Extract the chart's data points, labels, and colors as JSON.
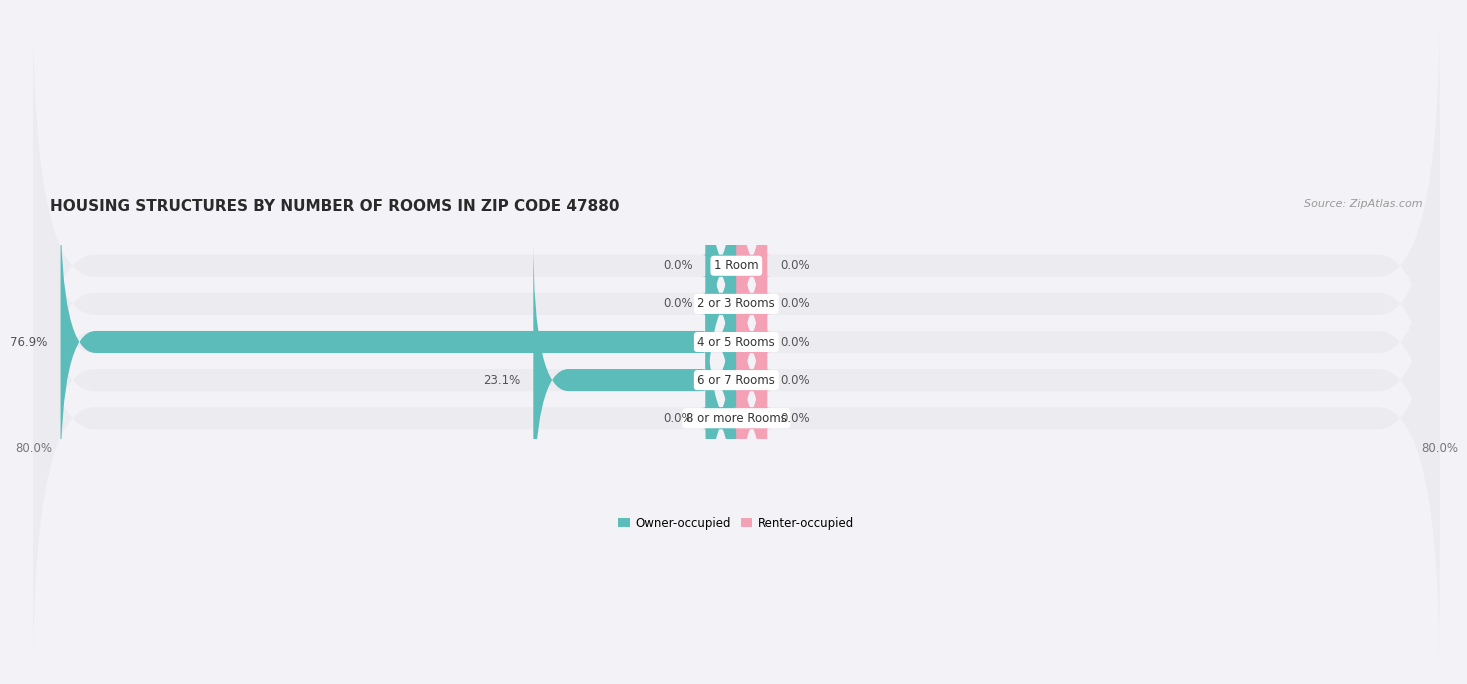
{
  "title": "HOUSING STRUCTURES BY NUMBER OF ROOMS IN ZIP CODE 47880",
  "source": "Source: ZipAtlas.com",
  "categories": [
    "1 Room",
    "2 or 3 Rooms",
    "4 or 5 Rooms",
    "6 or 7 Rooms",
    "8 or more Rooms"
  ],
  "owner_values": [
    0.0,
    0.0,
    76.9,
    23.1,
    0.0
  ],
  "renter_values": [
    0.0,
    0.0,
    0.0,
    0.0,
    0.0
  ],
  "owner_color": "#5bbcba",
  "renter_color": "#f4a0b5",
  "bar_bg_color": "#e4e4ea",
  "bar_height": 0.58,
  "bar_gap": 0.18,
  "xlim": [
    -80,
    80
  ],
  "stub_size": 3.5,
  "title_fontsize": 11,
  "source_fontsize": 8,
  "value_fontsize": 8.5,
  "cat_fontsize": 8.5,
  "legend_fontsize": 8.5,
  "background_color": "#f3f3f7",
  "bar_bg_light": "#ebebf0"
}
